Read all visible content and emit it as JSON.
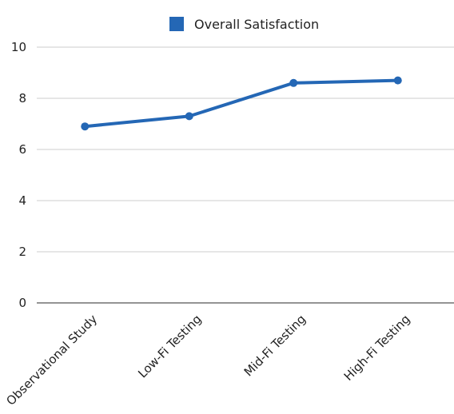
{
  "chart_data": {
    "type": "line",
    "categories": [
      "Observational Study",
      "Low-Fi Testing",
      "Mid-Fi Testing",
      "High-Fi Testing"
    ],
    "series": [
      {
        "name": "Overall Satisfaction",
        "values": [
          6.9,
          7.3,
          8.6,
          8.7
        ],
        "color": "#2467b5"
      }
    ],
    "ylim": [
      0,
      10
    ],
    "yticks": [
      0,
      2,
      4,
      6,
      8,
      10
    ],
    "grid": true,
    "legend_position": "top-center",
    "markers": true
  }
}
